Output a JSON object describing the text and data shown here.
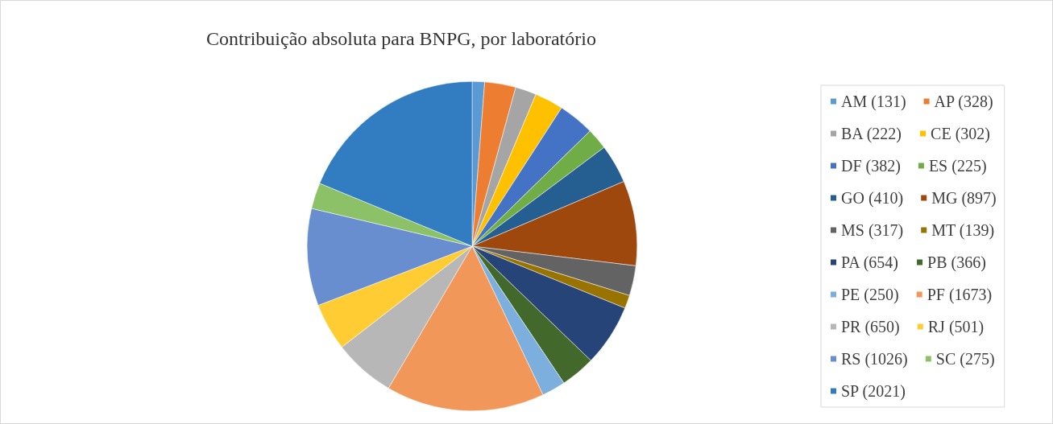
{
  "chart_data": {
    "type": "pie",
    "title": "Contribuição absoluta para BNPG, por laboratório",
    "categories": [
      "AM (131)",
      "AP (328)",
      "BA (222)",
      "CE (302)",
      "DF (382)",
      "ES (225)",
      "GO (410)",
      "MG (897)",
      "MS (317)",
      "MT (139)",
      "PA (654)",
      "PB (366)",
      "PE (250)",
      "PF (1673)",
      "PR (650)",
      "RJ (501)",
      "RS (1026)",
      "SC (275)",
      "SP (2021)"
    ],
    "values": [
      131,
      328,
      222,
      302,
      382,
      225,
      410,
      897,
      317,
      139,
      654,
      366,
      250,
      1673,
      650,
      501,
      1026,
      275,
      2021
    ],
    "colors": [
      "#5b9bd5",
      "#ed7d31",
      "#a5a5a5",
      "#ffc000",
      "#4472c4",
      "#70ad47",
      "#255e91",
      "#9e480e",
      "#636363",
      "#997300",
      "#264478",
      "#43682b",
      "#7cafdd",
      "#f1975a",
      "#b7b7b7",
      "#ffcd33",
      "#698ed0",
      "#8cc168",
      "#327dc2"
    ],
    "legend": "right"
  }
}
